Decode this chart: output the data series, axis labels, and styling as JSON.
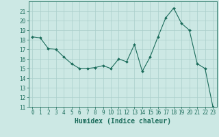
{
  "x": [
    0,
    1,
    2,
    3,
    4,
    5,
    6,
    7,
    8,
    9,
    10,
    11,
    12,
    13,
    14,
    15,
    16,
    17,
    18,
    19,
    20,
    21,
    22,
    23
  ],
  "y": [
    18.3,
    18.2,
    17.1,
    17.0,
    16.2,
    15.5,
    15.0,
    15.0,
    15.1,
    15.3,
    15.0,
    16.0,
    15.7,
    17.5,
    14.7,
    16.2,
    18.3,
    20.3,
    21.3,
    19.7,
    19.0,
    15.5,
    15.0,
    11.0
  ],
  "line_color": "#1a6b5a",
  "marker": "D",
  "marker_size": 2,
  "bg_color": "#cce8e4",
  "grid_color": "#aacfcb",
  "xlabel": "Humidex (Indice chaleur)",
  "ylim": [
    11,
    22
  ],
  "xlim": [
    -0.5,
    23.5
  ],
  "yticks": [
    11,
    12,
    13,
    14,
    15,
    16,
    17,
    18,
    19,
    20,
    21
  ],
  "xticks": [
    0,
    1,
    2,
    3,
    4,
    5,
    6,
    7,
    8,
    9,
    10,
    11,
    12,
    13,
    14,
    15,
    16,
    17,
    18,
    19,
    20,
    21,
    22,
    23
  ],
  "tick_color": "#1a6b5a",
  "label_fontsize": 7,
  "tick_fontsize": 5.5
}
